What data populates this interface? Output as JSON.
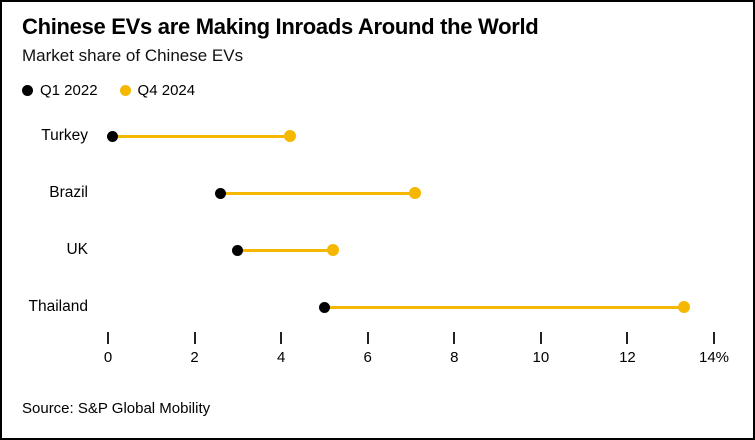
{
  "header": {
    "title": "Chinese EVs are Making Inroads Around the World",
    "subtitle": "Market share of Chinese EVs"
  },
  "source": "Source: S&P Global Mobility",
  "colors": {
    "q1_2022": "#000000",
    "q4_2024": "#F5B700",
    "line": "#F5B700",
    "tick": "#222222",
    "background": "#ffffff",
    "border": "#000000"
  },
  "chart_data": {
    "type": "dumbbell",
    "title": "Chinese EVs are Making Inroads Around the World",
    "subtitle": "Market share of Chinese EVs",
    "categories": [
      "Turkey",
      "Brazil",
      "UK",
      "Thailand"
    ],
    "series": [
      {
        "name": "Q1 2022",
        "color": "#000000",
        "values": [
          0.1,
          2.6,
          3.0,
          5.0
        ]
      },
      {
        "name": "Q4 2024",
        "color": "#F5B700",
        "values": [
          4.2,
          7.1,
          5.2,
          13.3
        ]
      }
    ],
    "xlabel": "",
    "ylabel": "",
    "xlim": [
      0,
      14
    ],
    "x_ticks": [
      0,
      2,
      4,
      6,
      8,
      10,
      12,
      14
    ],
    "x_tick_labels": [
      "0",
      "2",
      "4",
      "6",
      "8",
      "10",
      "12",
      "14%"
    ],
    "unit": "%",
    "grid": false,
    "legend_position": "top-left"
  }
}
